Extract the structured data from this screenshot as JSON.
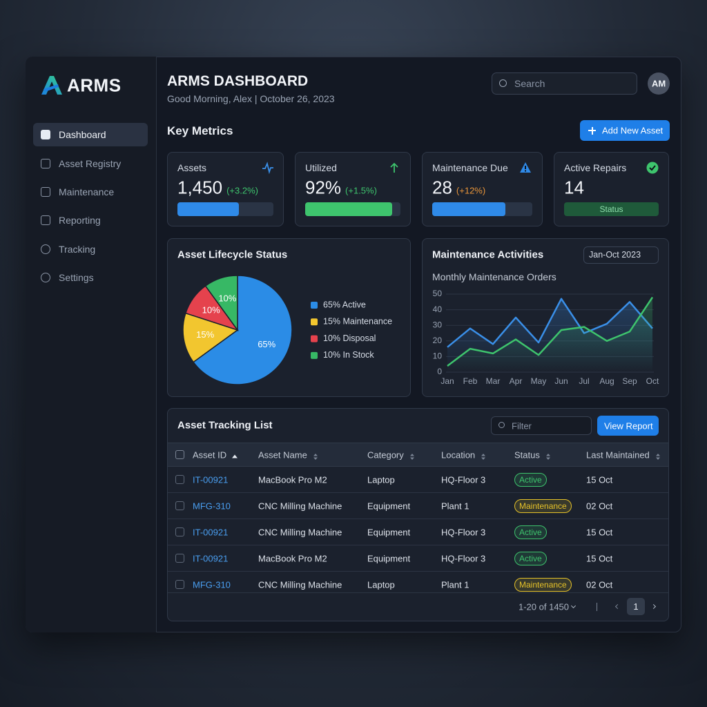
{
  "brand": "ARMS",
  "nav": [
    "Dashboard",
    "Asset Registry",
    "Maintenance",
    "Reporting",
    "Tracking",
    "Settings"
  ],
  "header": {
    "title": "ARMS DASHBOARD",
    "greeting": "Good Morning, Alex | October 26, 2023",
    "search": "Search",
    "avatar": "AM"
  },
  "metrics_title": "Key Metrics",
  "add_button": "Add New Asset",
  "metrics": [
    {
      "label": "Assets",
      "value": "1,450",
      "change": "(+3.2%)",
      "change_color": "#3ec46d",
      "progress": 64,
      "color": "#2f8ae8"
    },
    {
      "label": "Utilized",
      "value": "92%",
      "change": "(+1.5%)",
      "change_color": "#3ec46d",
      "progress": 91,
      "color": "#3ec46d"
    },
    {
      "label": "Maintenance Due",
      "value": "28",
      "change": "(+12%)",
      "change_color": "#e8953a",
      "progress": 73,
      "color": "#2f8ae8"
    },
    {
      "label": "Active Repairs",
      "value": "14",
      "status": "Status"
    }
  ],
  "chart_data": [
    {
      "type": "pie",
      "title": "Asset Lifecycle Status",
      "categories": [
        "65% Active",
        "15% Maintenance",
        "10% Disposal",
        "10% In Stock"
      ],
      "values": [
        65,
        15,
        10,
        10
      ],
      "value_labels": [
        "65%",
        "15%",
        "10%",
        "10%"
      ],
      "colors": [
        "#2b8ce6",
        "#f2c62f",
        "#e5424d",
        "#37b865"
      ]
    },
    {
      "type": "line",
      "title": "Maintenance Activities",
      "subtitle": "Monthly Maintenance Orders",
      "period": "Jan-Oct 2023",
      "categories": [
        "Jan",
        "Feb",
        "Mar",
        "Apr",
        "May",
        "Jun",
        "Jul",
        "Aug",
        "Sep",
        "Oct"
      ],
      "series": [
        {
          "color": "#3a8fe8",
          "values": [
            16,
            28,
            18,
            35,
            19,
            47,
            25,
            31,
            45,
            28
          ]
        },
        {
          "color": "#3ec46d",
          "values": [
            4,
            15,
            12,
            21,
            11,
            27,
            29,
            20,
            26,
            48
          ]
        }
      ],
      "ylim": [
        0,
        50
      ],
      "yticks": [
        0,
        10,
        20,
        30,
        40,
        50
      ],
      "grid": true
    }
  ],
  "table": {
    "title": "Asset Tracking List",
    "filter": "Filter",
    "button": "View Report",
    "columns": [
      "Asset ID",
      "Asset Name",
      "Category",
      "Location",
      "Status",
      "Last Maintained"
    ],
    "rows": [
      [
        "IT-00921",
        "MacBook Pro M2",
        "Laptop",
        "HQ-Floor 3",
        "Active",
        "15 Oct"
      ],
      [
        "MFG-310",
        "CNC Milling Machine",
        "Equipment",
        "Plant 1",
        "Maintenance",
        "02 Oct"
      ],
      [
        "IT-00921",
        "CNC Milling Machine",
        "Equipment",
        "HQ-Floor 3",
        "Active",
        "15 Oct"
      ],
      [
        "IT-00921",
        "MacBook Pro M2",
        "Equipment",
        "HQ-Floor 3",
        "Active",
        "15 Oct"
      ],
      [
        "MFG-310",
        "CNC Milling Machine",
        "Laptop",
        "Plant 1",
        "Maintenance",
        "02 Oct"
      ]
    ],
    "status_colors": [
      "#3ec46d",
      "#e6c229",
      "#3ec46d",
      "#3ec46d",
      "#e6c229"
    ],
    "pagination": "1-20 of 1450",
    "page": "1"
  }
}
